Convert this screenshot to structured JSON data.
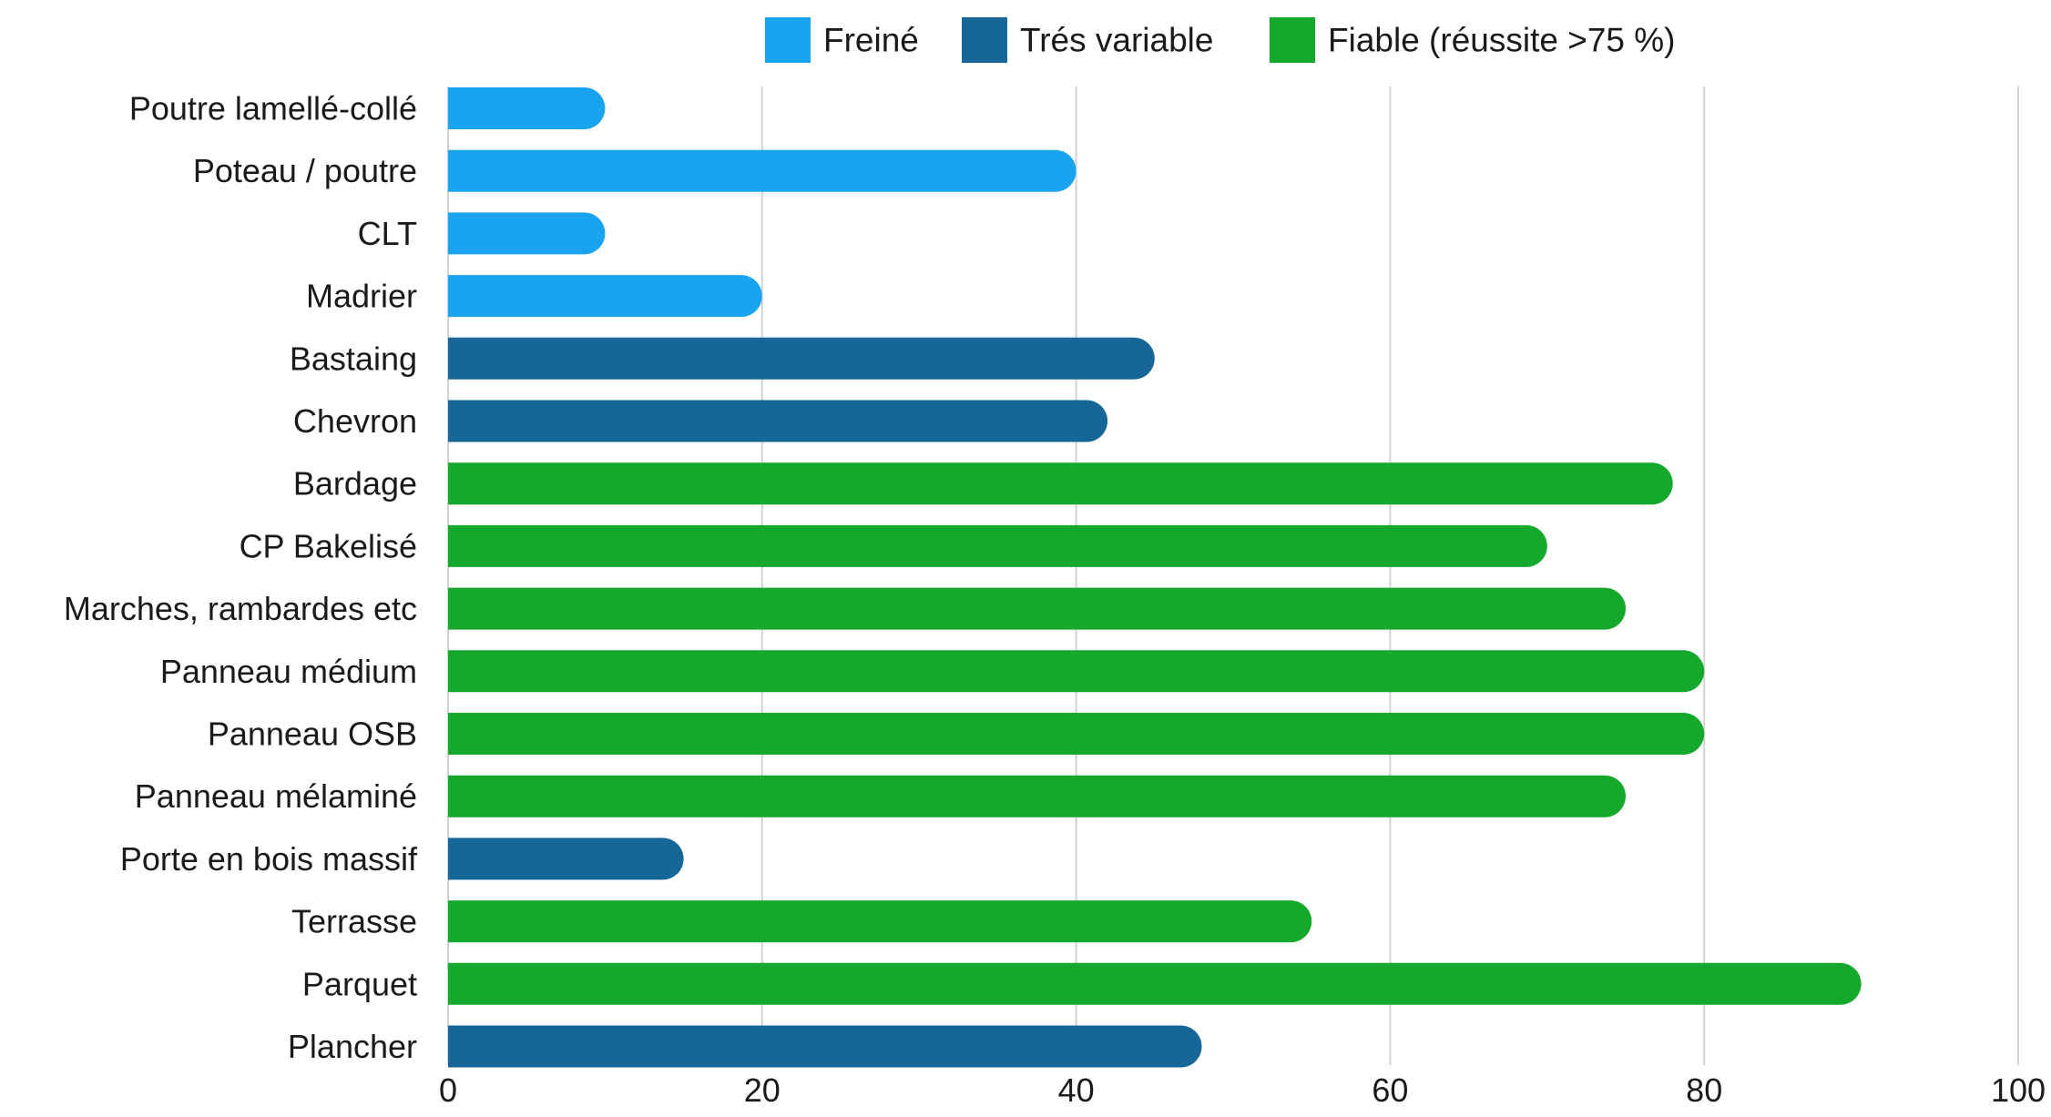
{
  "chart_data": {
    "type": "bar",
    "orientation": "horizontal",
    "categories": [
      "Poutre lamellé-collé",
      "Poteau / poutre",
      "CLT",
      "Madrier",
      "Bastaing",
      "Chevron",
      "Bardage",
      "CP Bakelisé",
      "Marches, rambardes etc",
      "Panneau médium",
      "Panneau OSB",
      "Panneau mélaminé",
      "Porte en bois massif",
      "Terrasse",
      "Parquet",
      "Plancher"
    ],
    "values": [
      10,
      40,
      10,
      20,
      45,
      42,
      78,
      70,
      75,
      80,
      80,
      75,
      15,
      55,
      90,
      48
    ],
    "groups": [
      "Freiné",
      "Freiné",
      "Freiné",
      "Freiné",
      "Trés variable",
      "Trés variable",
      "Fiable (réussite >75 %)",
      "Fiable (réussite >75 %)",
      "Fiable (réussite >75 %)",
      "Fiable (réussite >75 %)",
      "Fiable (réussite >75 %)",
      "Fiable (réussite >75 %)",
      "Trés variable",
      "Fiable (réussite >75 %)",
      "Fiable (réussite >75 %)",
      "Trés variable"
    ],
    "legend": [
      {
        "name": "Freiné",
        "color": "#1aa3ef"
      },
      {
        "name": "Trés variable",
        "color": "#166698"
      },
      {
        "name": "Fiable (réussite >75 %)",
        "color": "#14a82c"
      }
    ],
    "xlim": [
      0,
      100
    ],
    "xticks": [
      "0",
      "20",
      "40",
      "60",
      "80",
      "100"
    ],
    "grid": "vertical",
    "legend_position": "top",
    "title": "",
    "xlabel": "",
    "ylabel": ""
  }
}
